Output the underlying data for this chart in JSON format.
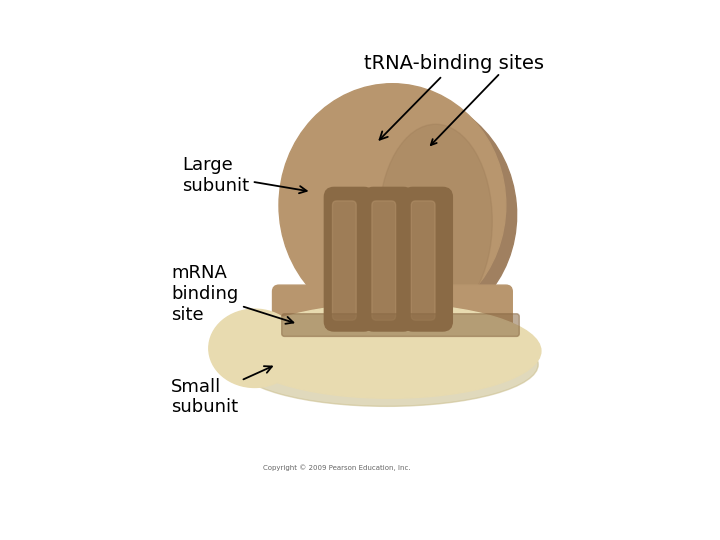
{
  "background_color": "#ffffff",
  "large_subunit_color": "#b8966e",
  "large_subunit_dark": "#9a7a56",
  "large_subunit_shadow": "#a08060",
  "small_subunit_color": "#e8dbb0",
  "small_subunit_dark": "#ccc090",
  "groove_color": "#8a6a45",
  "title": "tRNA-binding sites",
  "label_large": "Large\nsubunit",
  "label_mrna": "mRNA\nbinding\nsite",
  "label_small": "Small\nsubunit",
  "copyright": "Copyright © 2009 Pearson Education, Inc.",
  "text_color": "#000000",
  "title_fontsize": 14,
  "label_fontsize": 13
}
